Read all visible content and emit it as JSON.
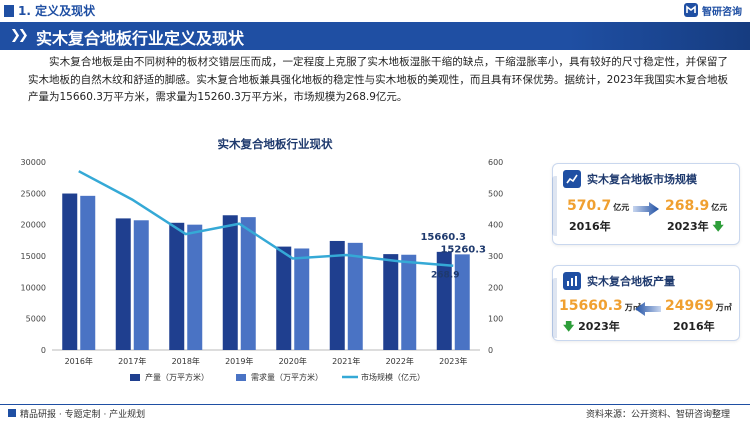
{
  "header": {
    "section_label": "1. 定义及现状",
    "logo_text": "智研咨询"
  },
  "banner": {
    "title": "实木复合地板行业定义及现状"
  },
  "intro": {
    "paragraph": "实木复合地板是由不同树种的板材交错层压而成，一定程度上克服了实木地板湿胀干缩的缺点，干缩湿胀率小，具有较好的尺寸稳定性，并保留了实木地板的自然木纹和舒适的脚感。实木复合地板兼具强化地板的稳定性与实木地板的美观性，而且具有环保优势。据统计，2023年我国实木复合地板产量为15660.3万平方米，需求量为15260.3万平方米，市场规模为268.9亿元。"
  },
  "chart_data": {
    "type": "bar",
    "title": "实木复合地板行业现状",
    "categories": [
      "2016年",
      "2017年",
      "2018年",
      "2019年",
      "2020年",
      "2021年",
      "2022年",
      "2023年"
    ],
    "series": [
      {
        "name": "产量（万平方米）",
        "type": "bar",
        "axis": "left",
        "color": "#1f3f8f",
        "values": [
          24969,
          21000,
          20300,
          21500,
          16500,
          17400,
          15300,
          15660.3
        ]
      },
      {
        "name": "需求量（万平方米）",
        "type": "bar",
        "axis": "left",
        "color": "#4a73c4",
        "values": [
          24600,
          20700,
          20000,
          21200,
          16200,
          17100,
          15200,
          15260.3
        ]
      },
      {
        "name": "市场规模（亿元）",
        "type": "line",
        "axis": "right",
        "color": "#35a9d6",
        "values": [
          570.7,
          480,
          370,
          403,
          292,
          303,
          283,
          268.9
        ]
      }
    ],
    "ylim_left": [
      0,
      30000
    ],
    "yticks_left": [
      0,
      5000,
      10000,
      15000,
      20000,
      25000,
      30000
    ],
    "ylim_right": [
      0,
      600
    ],
    "yticks_right": [
      0,
      100,
      200,
      300,
      400,
      500,
      600
    ],
    "data_labels": {
      "production_2023": "15660.3",
      "demand_2023": "15260.3",
      "market_2023": "268.9"
    },
    "legend_position": "bottom",
    "grid": false
  },
  "cards": {
    "market": {
      "title": "实木复合地板市场规模",
      "from_value": "570.7",
      "from_unit": "亿元",
      "from_year": "2016年",
      "to_value": "268.9",
      "to_unit": "亿元",
      "to_year": "2023年",
      "trend_icon": "down-arrow-icon"
    },
    "output": {
      "title": "实木复合地板产量",
      "left_value": "15660.3",
      "left_unit": "万㎡",
      "left_year": "2023年",
      "right_value": "24969",
      "right_unit": "万㎡",
      "right_year": "2016年",
      "trend_icon": "down-arrow-icon"
    }
  },
  "footer": {
    "left": "精品研报 · 专题定制 · 产业规划",
    "right": "资料来源：公开资料、智研咨询整理"
  },
  "colors": {
    "brand": "#1f4fa3",
    "accent": "#f0a030",
    "down": "#2e9e3a"
  }
}
